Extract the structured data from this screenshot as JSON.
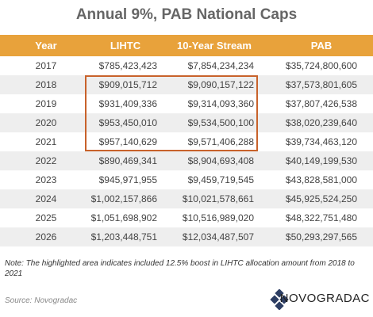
{
  "title": "Annual 9%, PAB National Caps",
  "table": {
    "header": [
      "Year",
      "LIHTC",
      "10-Year Stream",
      "PAB"
    ],
    "rows": [
      [
        "2017",
        "$785,423,423",
        "$7,854,234,234",
        "$35,724,800,600"
      ],
      [
        "2018",
        "$909,015,712",
        "$9,090,157,122",
        "$37,573,801,605"
      ],
      [
        "2019",
        "$931,409,336",
        "$9,314,093,360",
        "$37,807,426,538"
      ],
      [
        "2020",
        "$953,450,010",
        "$9,534,500,100",
        "$38,020,239,640"
      ],
      [
        "2021",
        "$957,140,629",
        "$9,571,406,288",
        "$39,734,463,120"
      ],
      [
        "2022",
        "$890,469,341",
        "$8,904,693,408",
        "$40,149,199,530"
      ],
      [
        "2023",
        "$945,971,955",
        "$9,459,719,545",
        "$43,828,581,000"
      ],
      [
        "2024",
        "$1,002,157,866",
        "$10,021,578,661",
        "$45,925,524,250"
      ],
      [
        "2025",
        "$1,051,698,902",
        "$10,516,989,020",
        "$48,322,751,480"
      ],
      [
        "2026",
        "$1,203,448,751",
        "$12,034,487,507",
        "$50,293,297,565"
      ]
    ]
  },
  "note": "Note: The highlighted area indicates included 12.5% boost in LIHTC allocation amount from 2018 to 2021",
  "source": "Source: Novogradac",
  "logo": "NOVOGRADAC"
}
